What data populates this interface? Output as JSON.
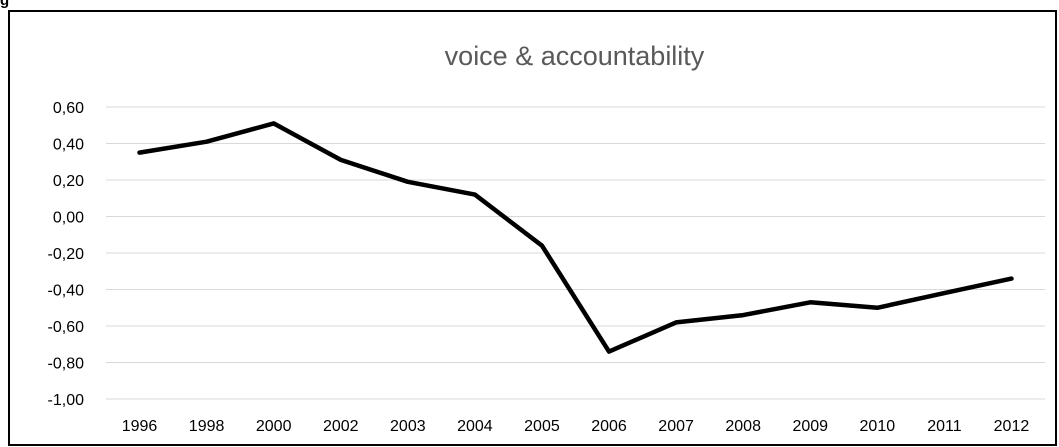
{
  "fragment_text": "g",
  "chart_data": {
    "type": "line",
    "title": "voice & accountability",
    "xlabel": "",
    "ylabel": "",
    "categories": [
      "1996",
      "1998",
      "2000",
      "2002",
      "2003",
      "2004",
      "2005",
      "2006",
      "2007",
      "2008",
      "2009",
      "2010",
      "2011",
      "2012"
    ],
    "series": [
      {
        "values": [
          0.35,
          0.41,
          0.51,
          0.31,
          0.19,
          0.12,
          -0.16,
          -0.74,
          -0.58,
          -0.54,
          -0.47,
          -0.5,
          -0.42,
          -0.34
        ],
        "color": "#000000"
      }
    ],
    "ylim": [
      -1.0,
      0.6
    ],
    "yticks": [
      0.6,
      0.4,
      0.2,
      0.0,
      -0.2,
      -0.4,
      -0.6,
      -0.8,
      -1.0
    ],
    "ytick_labels": [
      "0,60",
      "0,40",
      "0,20",
      "0,00",
      "-0,20",
      "-0,40",
      "-0,60",
      "-0,80",
      "-1,00"
    ],
    "grid": true,
    "legend": "none",
    "colors": {
      "line": "#000000",
      "grid": "#d9d9d9",
      "title": "#595959",
      "tick": "#000000"
    }
  }
}
